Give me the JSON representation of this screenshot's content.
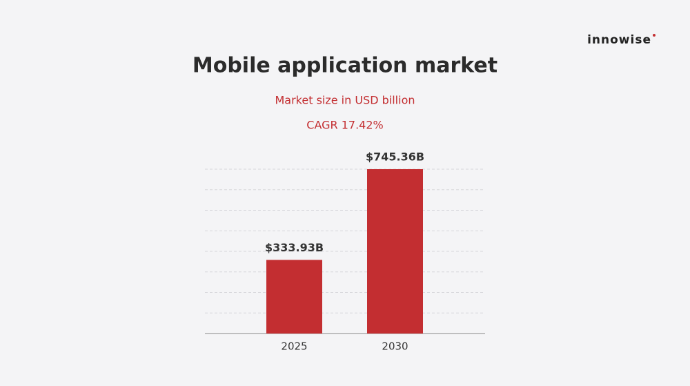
{
  "brand": "innowise",
  "chart_data": {
    "type": "bar",
    "title": "Mobile application market",
    "subtitle": "Market size in USD billion",
    "annotation": "CAGR 17.42%",
    "categories": [
      "2025",
      "2030"
    ],
    "values": [
      333.93,
      745.36
    ],
    "value_labels": [
      "$333.93B",
      "$745.36B"
    ],
    "color": "#c32e31",
    "ylim": [
      0,
      745.36
    ],
    "grid": true
  }
}
